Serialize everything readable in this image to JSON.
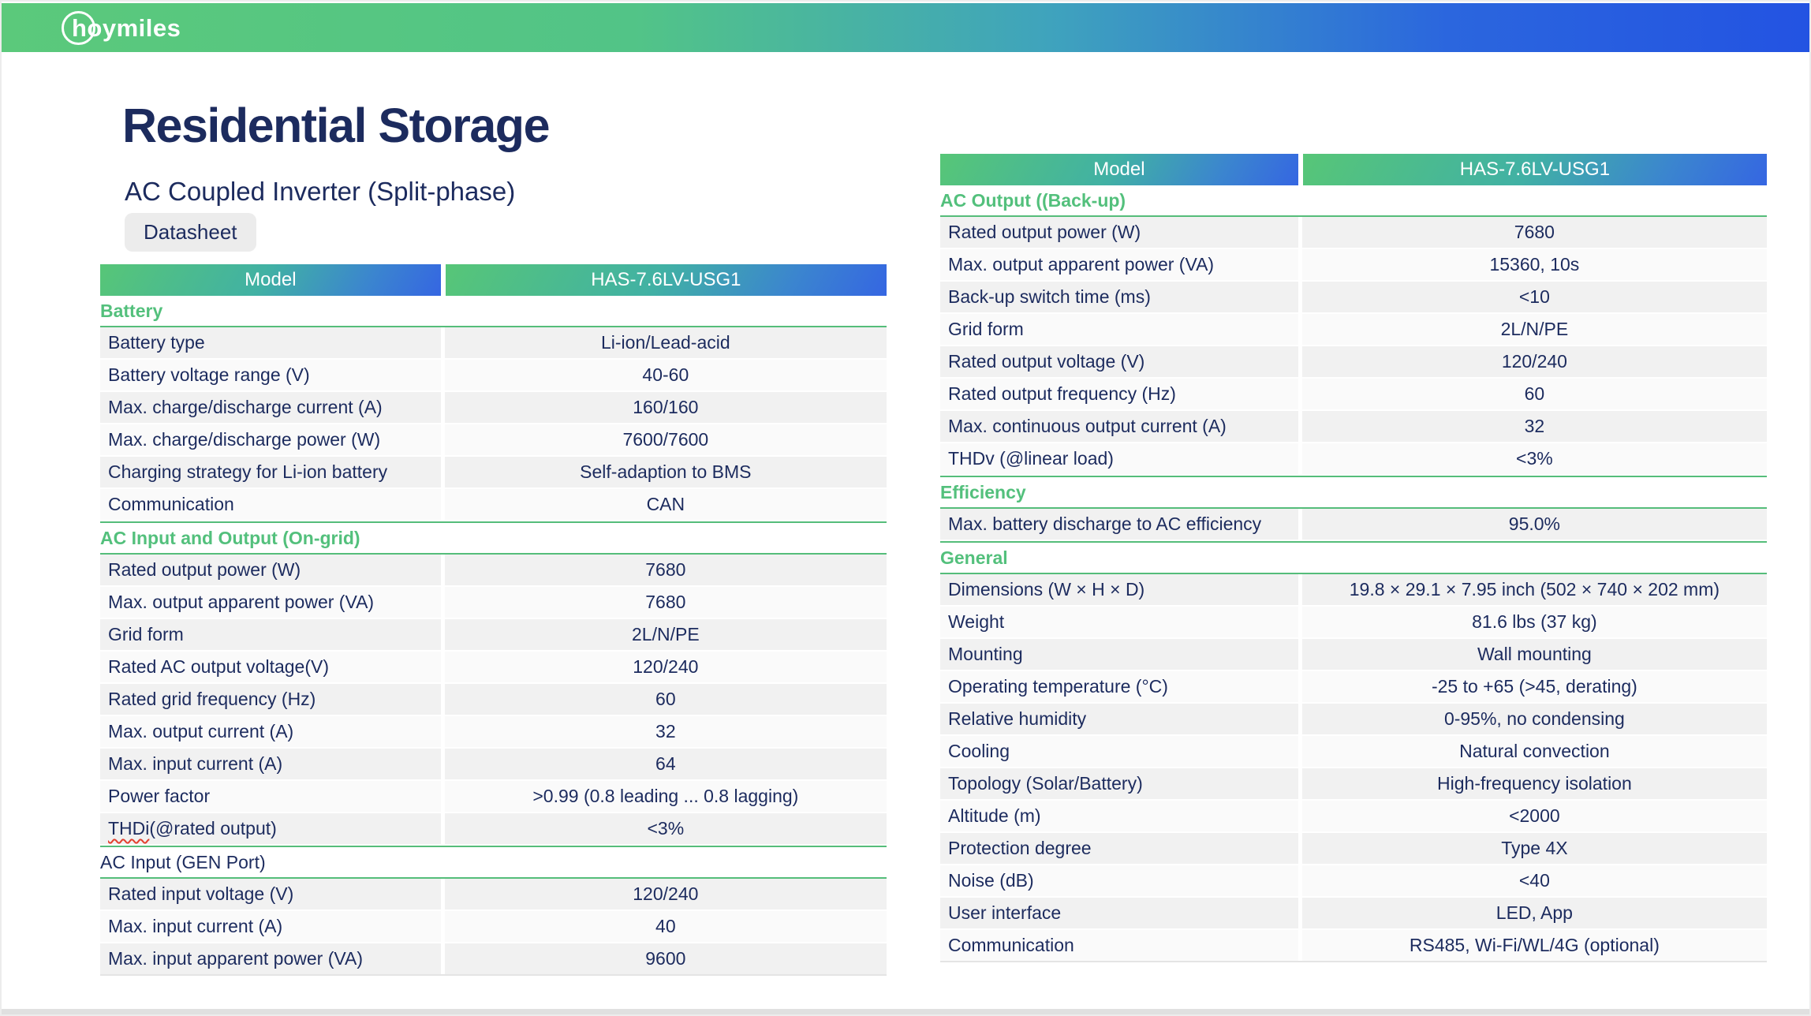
{
  "brand": {
    "logo_text": "hoymiles"
  },
  "page": {
    "title": "Residential Storage",
    "subtitle": "AC Coupled Inverter (Split-phase)",
    "badge": "Datasheet"
  },
  "colors": {
    "topbar_green": "#5bc97b",
    "topbar_blue": "#2353e2",
    "section_green": "#53c07c",
    "text_navy": "#1c2b5e",
    "row_gray": "#f1f1f1",
    "row_light": "#fafafa"
  },
  "tables": [
    {
      "id": "left",
      "header": {
        "model_label": "Model",
        "model_value": "HAS-7.6LV-USG1"
      },
      "sections": [
        {
          "title": "Battery",
          "title_style": "green",
          "rows": [
            {
              "label": "Battery type",
              "value": "Li-ion/Lead-acid"
            },
            {
              "label": "Battery voltage range (V)",
              "value": "40-60"
            },
            {
              "label": "Max. charge/discharge current (A)",
              "value": "160/160"
            },
            {
              "label": "Max. charge/discharge power (W)",
              "value": "7600/7600"
            },
            {
              "label": "Charging strategy for Li-ion battery",
              "value": "Self-adaption to BMS"
            },
            {
              "label": "Communication",
              "value": "CAN"
            }
          ]
        },
        {
          "title": "AC Input and Output (On-grid)",
          "title_style": "green",
          "rows": [
            {
              "label": "Rated output power (W)",
              "value": "7680"
            },
            {
              "label": "Max. output apparent power (VA)",
              "value": "7680"
            },
            {
              "label": "Grid form",
              "value": "2L/N/PE"
            },
            {
              "label": "Rated AC output voltage(V)",
              "value": "120/240"
            },
            {
              "label": "Rated grid frequency (Hz)",
              "value": "60"
            },
            {
              "label": "Max. output current (A)",
              "value": "32"
            },
            {
              "label": "Max. input current (A)",
              "value": "64"
            },
            {
              "label": "Power factor",
              "value": ">0.99 (0.8 leading ... 0.8 lagging)"
            },
            {
              "label": "THDi (@rated output)",
              "value": "<3%",
              "misspelled_prefix": "THDi"
            }
          ]
        },
        {
          "title": "AC Input (GEN Port)",
          "title_style": "navy",
          "rows": [
            {
              "label": "Rated input voltage (V)",
              "value": "120/240"
            },
            {
              "label": "Max. input current (A)",
              "value": "40"
            },
            {
              "label": "Max. input apparent power (VA)",
              "value": "9600"
            }
          ]
        }
      ]
    },
    {
      "id": "right",
      "header": {
        "model_label": "Model",
        "model_value": "HAS-7.6LV-USG1"
      },
      "sections": [
        {
          "title": "AC Output ((Back-up)",
          "title_style": "green",
          "rows": [
            {
              "label": "Rated output power (W)",
              "value": "7680"
            },
            {
              "label": "Max. output apparent power (VA)",
              "value": "15360, 10s"
            },
            {
              "label": "Back-up switch time (ms)",
              "value": "<10"
            },
            {
              "label": "Grid form",
              "value": "2L/N/PE"
            },
            {
              "label": "Rated output voltage (V)",
              "value": "120/240"
            },
            {
              "label": "Rated output frequency (Hz)",
              "value": "60"
            },
            {
              "label": "Max. continuous output current (A)",
              "value": "32"
            },
            {
              "label": "THDv (@linear load)",
              "value": "<3%"
            }
          ]
        },
        {
          "title": "Efficiency",
          "title_style": "green",
          "rows": [
            {
              "label": "Max. battery discharge to AC efficiency",
              "value": "95.0%"
            }
          ]
        },
        {
          "title": "General",
          "title_style": "green",
          "rows": [
            {
              "label": "Dimensions (W × H × D)",
              "value": "19.8 × 29.1 × 7.95 inch (502 × 740 × 202 mm)"
            },
            {
              "label": "Weight",
              "value": "81.6 lbs (37 kg)"
            },
            {
              "label": "Mounting",
              "value": "Wall mounting"
            },
            {
              "label": "Operating temperature (°C)",
              "value": "-25 to +65 (>45, derating)"
            },
            {
              "label": "Relative humidity",
              "value": "0-95%, no condensing"
            },
            {
              "label": "Cooling",
              "value": "Natural convection"
            },
            {
              "label": "Topology (Solar/Battery)",
              "value": "High-frequency isolation"
            },
            {
              "label": "Altitude (m)",
              "value": "<2000"
            },
            {
              "label": "Protection degree",
              "value": "Type 4X"
            },
            {
              "label": "Noise (dB)",
              "value": "<40"
            },
            {
              "label": "User interface",
              "value": "LED, App"
            },
            {
              "label": "Communication",
              "value": "RS485, Wi-Fi/WL/4G (optional)"
            }
          ]
        }
      ]
    }
  ]
}
